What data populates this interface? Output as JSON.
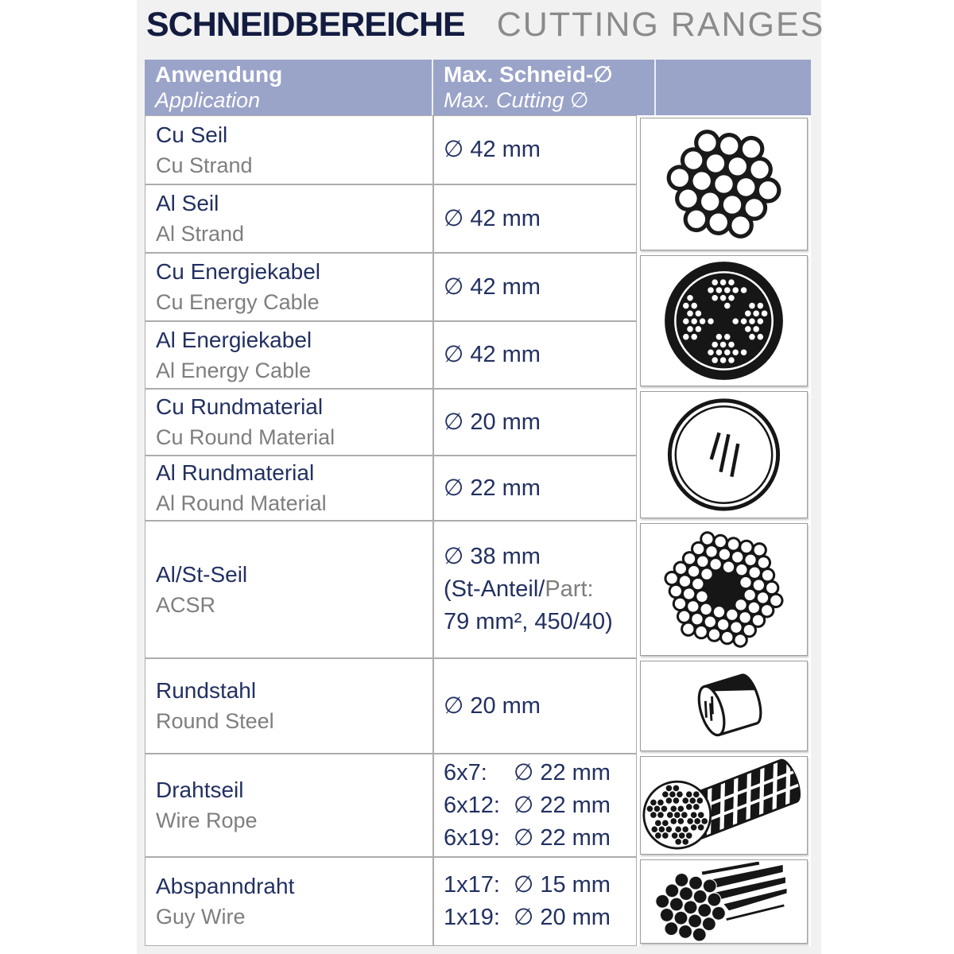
{
  "title": {
    "german": "SCHNEIDBEREICHE",
    "english": "CUTTING RANGES"
  },
  "table": {
    "header": {
      "application_de": "Anwendung",
      "application_en": "Application",
      "cutting_de": "Max. Schneid-∅",
      "cutting_en": "Max. Cutting ∅",
      "image_col": ""
    },
    "rows": [
      {
        "name_de": "Cu Seil",
        "name_en": "Cu Strand",
        "value": "∅ 42 mm"
      },
      {
        "name_de": "Al Seil",
        "name_en": "Al Strand",
        "value": "∅ 42 mm"
      },
      {
        "name_de": "Cu Energiekabel",
        "name_en": "Cu Energy Cable",
        "value": "∅ 42 mm"
      },
      {
        "name_de": "Al Energiekabel",
        "name_en": "Al Energy Cable",
        "value": "∅ 42 mm"
      },
      {
        "name_de": "Cu Rundmaterial",
        "name_en": "Cu Round Material",
        "value": "∅ 20 mm"
      },
      {
        "name_de": "Al Rundmaterial",
        "name_en": "Al Round Material",
        "value": "∅ 22 mm"
      },
      {
        "name_de": "Al/St-Seil",
        "name_en": "ACSR",
        "value": "∅ 38 mm",
        "note_de": "(St-Anteil/",
        "note_en": "Part:",
        "note_line2": "79 mm², 450/40)"
      },
      {
        "name_de": "Rundstahl",
        "name_en": "Round Steel",
        "value": "∅ 20 mm"
      },
      {
        "name_de": "Drahtseil",
        "name_en": "Wire Rope",
        "lines": [
          {
            "label": "6x7:",
            "value": "∅ 22 mm"
          },
          {
            "label": "6x12:",
            "value": "∅ 22 mm"
          },
          {
            "label": "6x19:",
            "value": "∅ 22 mm"
          }
        ]
      },
      {
        "name_de": "Abspanndraht",
        "name_en": "Guy Wire",
        "lines": [
          {
            "label": "1x17:",
            "value": "∅ 15 mm"
          },
          {
            "label": "1x19:",
            "value": "∅ 20 mm"
          }
        ]
      }
    ],
    "icons": [
      "strand-cross-section-icon",
      "energy-cable-cross-section-icon",
      "round-material-cross-section-icon",
      "acsr-cross-section-icon",
      "round-steel-bar-icon",
      "wire-rope-icon",
      "guy-wire-icon"
    ]
  },
  "colors": {
    "header_bg": "#9aa3c8",
    "text_navy": "#223061",
    "text_gray": "#7e7e7e",
    "title_navy": "#131c40",
    "title_gray": "#8b8b8b",
    "panel_bg": "#f1f1f1",
    "cell_border": "#acacac"
  }
}
